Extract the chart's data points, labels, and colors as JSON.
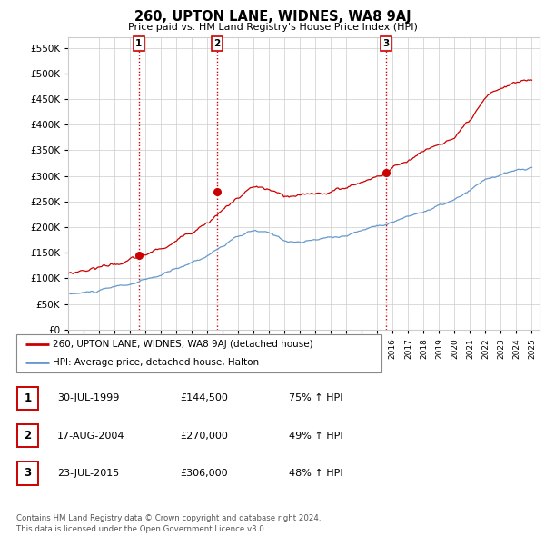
{
  "title": "260, UPTON LANE, WIDNES, WA8 9AJ",
  "subtitle": "Price paid vs. HM Land Registry's House Price Index (HPI)",
  "ytick_values": [
    0,
    50000,
    100000,
    150000,
    200000,
    250000,
    300000,
    350000,
    400000,
    450000,
    500000,
    550000
  ],
  "ylim": [
    0,
    570000
  ],
  "xlim_start": 1995.0,
  "xlim_end": 2025.5,
  "sale_dates": [
    1999.578,
    2004.633,
    2015.556
  ],
  "sale_prices": [
    144500,
    270000,
    306000
  ],
  "sale_labels": [
    "1",
    "2",
    "3"
  ],
  "vline_color": "#cc0000",
  "red_line_color": "#cc0000",
  "blue_line_color": "#6699cc",
  "legend_entries": [
    "260, UPTON LANE, WIDNES, WA8 9AJ (detached house)",
    "HPI: Average price, detached house, Halton"
  ],
  "table_rows": [
    [
      "1",
      "30-JUL-1999",
      "£144,500",
      "75% ↑ HPI"
    ],
    [
      "2",
      "17-AUG-2004",
      "£270,000",
      "49% ↑ HPI"
    ],
    [
      "3",
      "23-JUL-2015",
      "£306,000",
      "48% ↑ HPI"
    ]
  ],
  "footer_text": "Contains HM Land Registry data © Crown copyright and database right 2024.\nThis data is licensed under the Open Government Licence v3.0.",
  "background_color": "#ffffff",
  "grid_color": "#cccccc",
  "xtick_years": [
    1995,
    1996,
    1997,
    1998,
    1999,
    2000,
    2001,
    2002,
    2003,
    2004,
    2005,
    2006,
    2007,
    2008,
    2009,
    2010,
    2011,
    2012,
    2013,
    2014,
    2015,
    2016,
    2017,
    2018,
    2019,
    2020,
    2021,
    2022,
    2023,
    2024,
    2025
  ]
}
